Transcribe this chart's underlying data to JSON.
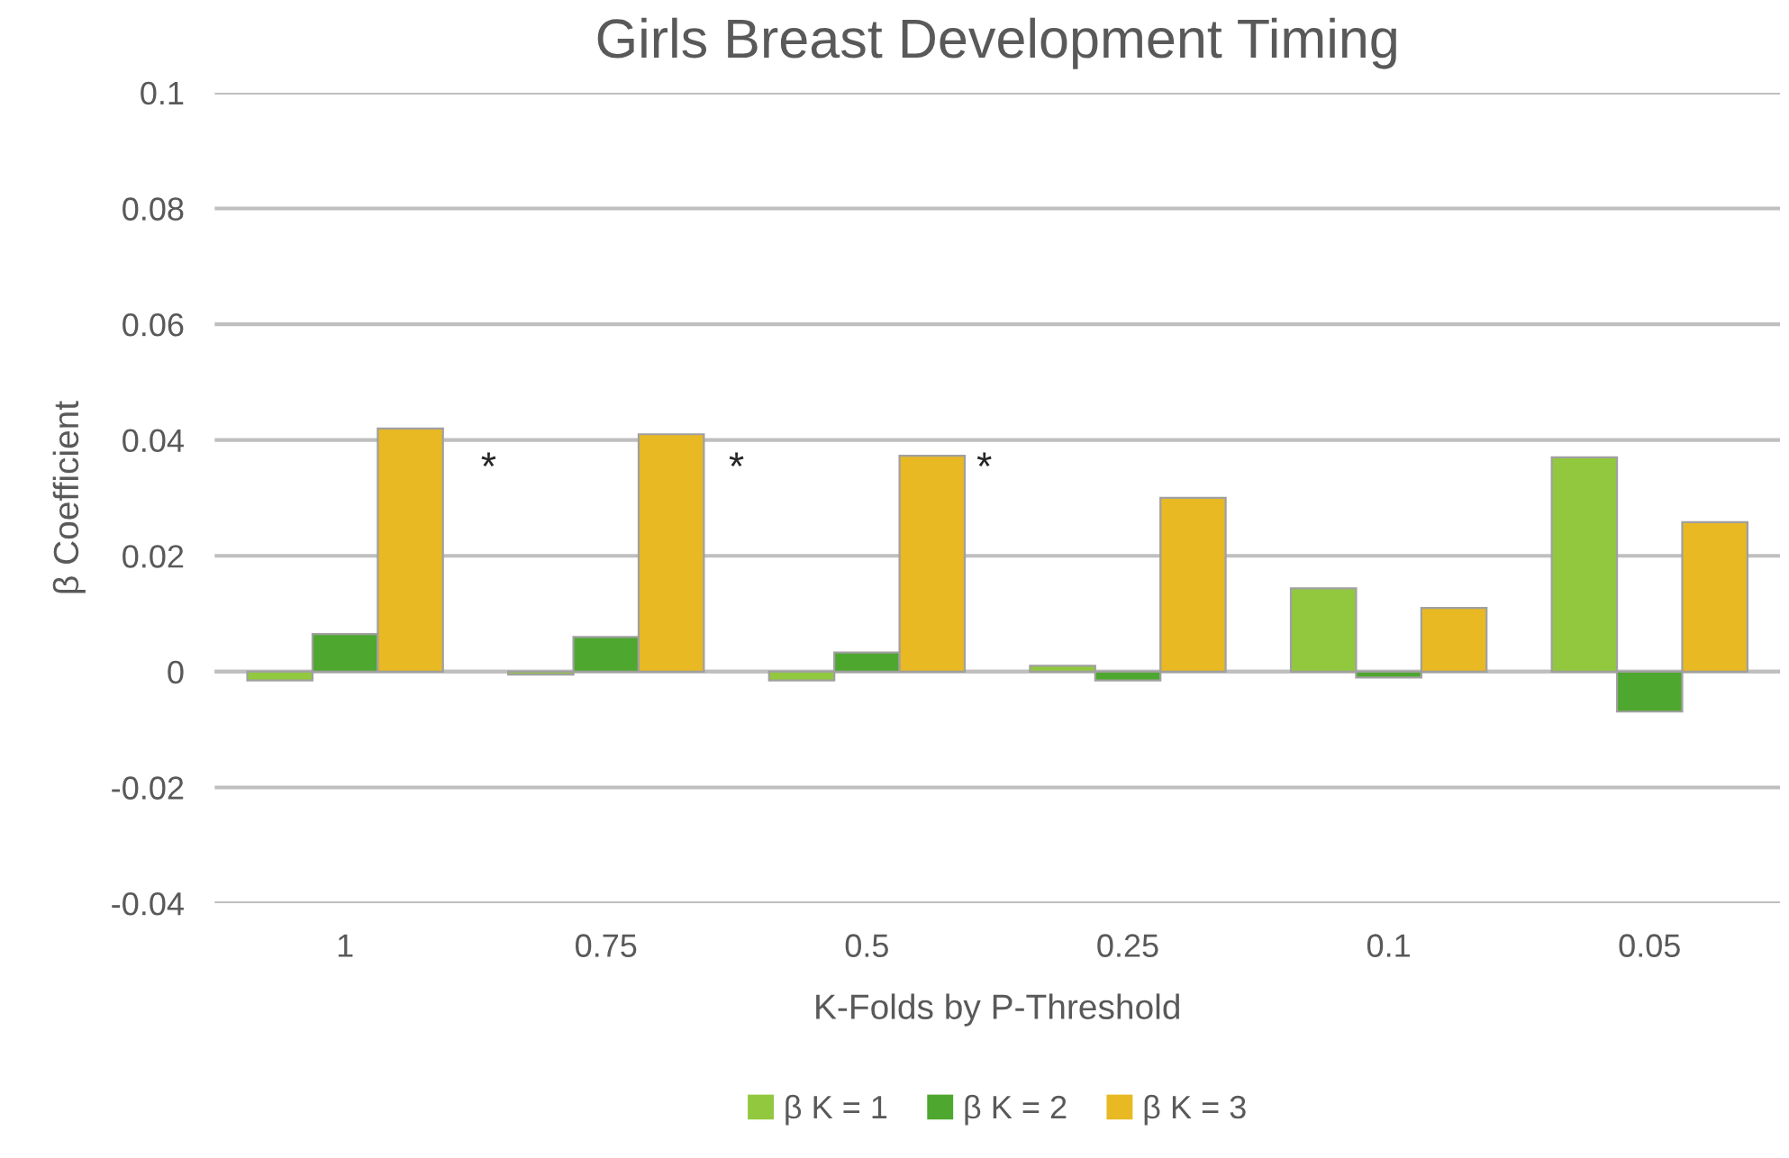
{
  "chart_data": {
    "type": "bar",
    "title": "Girls Breast Development Timing",
    "xlabel": "K-Folds by P-Threshold",
    "ylabel": "β Coefficient",
    "categories": [
      "1",
      "0.75",
      "0.5",
      "0.25",
      "0.1",
      "0.05"
    ],
    "series": [
      {
        "name": "β K = 1",
        "color": "#92c83e",
        "values": [
          -0.0015,
          -0.0005,
          -0.0015,
          0.001,
          0.0144,
          0.037
        ]
      },
      {
        "name": "β K = 2",
        "color": "#4ea72e",
        "values": [
          0.0065,
          0.006,
          0.0033,
          -0.0015,
          -0.001,
          -0.0069
        ]
      },
      {
        "name": "β K = 3",
        "color": "#e8b923",
        "values": [
          0.042,
          0.041,
          0.0373,
          0.03,
          0.011,
          0.0258
        ]
      }
    ],
    "ylim": [
      -0.04,
      0.1
    ],
    "yticks": [
      -0.04,
      -0.02,
      0,
      0.02,
      0.04,
      0.06,
      0.08,
      0.1
    ],
    "annotations": [
      "*",
      "*",
      "*"
    ],
    "grid": "y",
    "legend": "bottom"
  }
}
